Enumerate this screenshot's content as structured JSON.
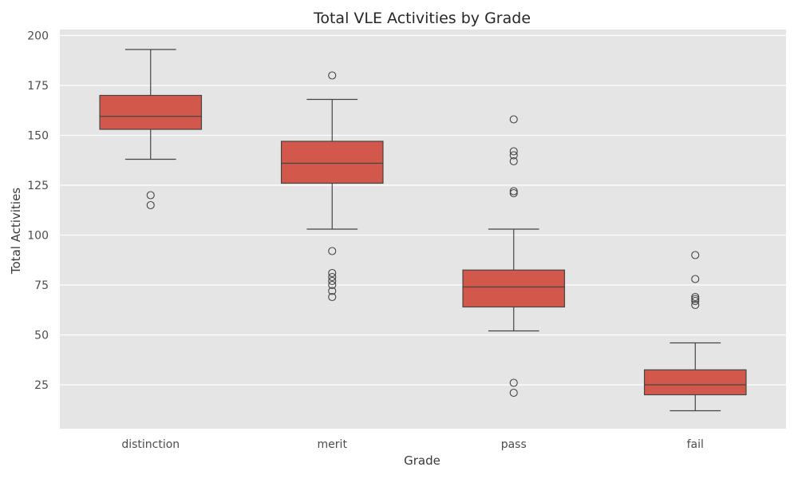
{
  "chart_data": {
    "type": "box",
    "title": "Total VLE Activities by Grade",
    "xlabel": "Grade",
    "ylabel": "Total Activities",
    "ylim": [
      3,
      203
    ],
    "yticks": [
      25,
      50,
      75,
      100,
      125,
      150,
      175,
      200
    ],
    "grid": true,
    "legend": "none",
    "colors": {
      "box_fill": "#d1584a",
      "line": "#454545",
      "background": "#e5e5e5",
      "grid": "#ffffff"
    },
    "categories": [
      "distinction",
      "merit",
      "pass",
      "fail"
    ],
    "boxes": [
      {
        "category": "distinction",
        "whisker_low": 138,
        "q1": 153,
        "median": 159.5,
        "q3": 170,
        "whisker_high": 193,
        "outliers": [
          120,
          115
        ]
      },
      {
        "category": "merit",
        "whisker_low": 103,
        "q1": 126,
        "median": 136,
        "q3": 147,
        "whisker_high": 168,
        "outliers": [
          180,
          92,
          81,
          79,
          77,
          75,
          72,
          69
        ]
      },
      {
        "category": "pass",
        "whisker_low": 52,
        "q1": 64,
        "median": 74,
        "q3": 82.5,
        "whisker_high": 103,
        "outliers": [
          158,
          142,
          140,
          137,
          122,
          121,
          26,
          21
        ]
      },
      {
        "category": "fail",
        "whisker_low": 12,
        "q1": 20,
        "median": 25,
        "q3": 32.5,
        "whisker_high": 46,
        "outliers": [
          90,
          78,
          69,
          68,
          67,
          65
        ]
      }
    ]
  }
}
